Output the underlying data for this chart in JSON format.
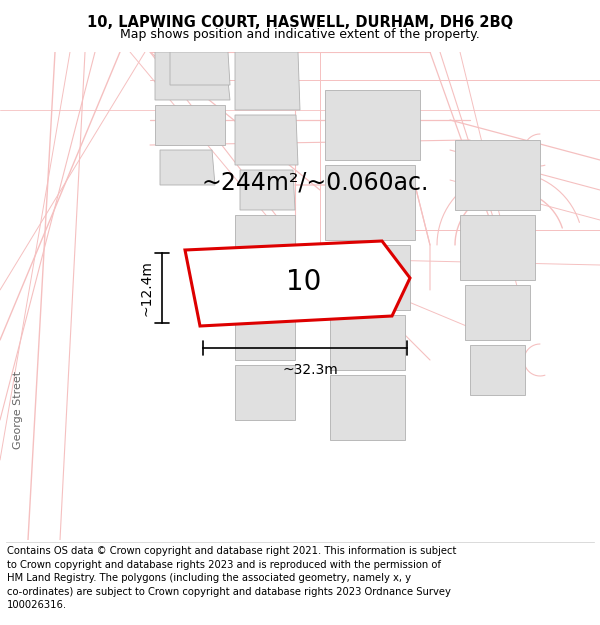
{
  "title": "10, LAPWING COURT, HASWELL, DURHAM, DH6 2BQ",
  "subtitle": "Map shows position and indicative extent of the property.",
  "area_text": "~244m²/~0.060ac.",
  "label_number": "10",
  "dim_width": "~32.3m",
  "dim_height": "~12.4m",
  "footer_lines": [
    "Contains OS data © Crown copyright and database right 2021. This information is subject",
    "to Crown copyright and database rights 2023 and is reproduced with the permission of",
    "HM Land Registry. The polygons (including the associated geometry, namely x, y",
    "co-ordinates) are subject to Crown copyright and database rights 2023 Ordnance Survey",
    "100026316."
  ],
  "bg_color": "#ffffff",
  "pink": "#f5c0c0",
  "red": "#dd0000",
  "gray_bld": "#e0e0e0",
  "gray_bld_edge": "#b0b0b0",
  "street_label": "George Street",
  "title_fontsize": 10.5,
  "subtitle_fontsize": 9,
  "area_fontsize": 17,
  "number_fontsize": 20,
  "dim_fontsize": 10,
  "footer_fontsize": 7.2,
  "street_fontsize": 8
}
